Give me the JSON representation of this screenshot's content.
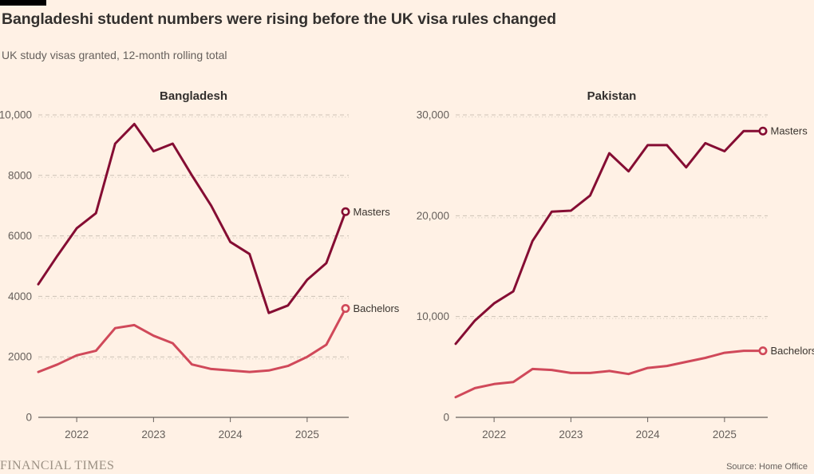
{
  "header": {
    "title": "Bangladeshi student numbers were rising before the UK visa rules changed",
    "subtitle": "UK study visas granted, 12-month rolling total"
  },
  "footer": {
    "brand": "FINANCIAL TIMES",
    "source": "Source: Home Office"
  },
  "colors": {
    "background": "#fff1e5",
    "black_bar": "#000000",
    "title_text": "#33302e",
    "muted_text": "#66605c",
    "label_text": "#3a342f",
    "grid": "#ccc1b5",
    "grid_dots": "#dbd1c5",
    "axis": "#66605c",
    "masters": "#850d33",
    "bachelors": "#d0495a"
  },
  "chart_data": [
    {
      "type": "line",
      "title": "Bangladesh",
      "xlabel": "",
      "ylabel": "",
      "x": [
        2021.5,
        2021.75,
        2022,
        2022.25,
        2022.5,
        2022.75,
        2023,
        2023.25,
        2023.5,
        2023.75,
        2024,
        2024.25,
        2024.5,
        2024.75,
        2025,
        2025.25,
        2025.5
      ],
      "xlim": [
        2021.5,
        2025.5
      ],
      "xticks": [
        2022,
        2023,
        2024,
        2025
      ],
      "xtick_labels": [
        "2022",
        "2023",
        "2024",
        "2025"
      ],
      "ylim": [
        0,
        10000
      ],
      "yticks": [
        0,
        2000,
        4000,
        6000,
        8000,
        10000
      ],
      "ytick_labels": [
        "0",
        "2000",
        "4000",
        "6000",
        "8000",
        "10,000"
      ],
      "grid": "horizontal dashed",
      "legend_position": "end-of-line labels",
      "series": [
        {
          "name": "Masters",
          "color_key": "masters",
          "values": [
            4400,
            5350,
            6250,
            6750,
            9050,
            9700,
            8800,
            9050,
            8000,
            7000,
            5800,
            5400,
            3450,
            3700,
            4550,
            5100,
            6800
          ]
        },
        {
          "name": "Bachelors",
          "color_key": "bachelors",
          "values": [
            1500,
            1750,
            2050,
            2200,
            2950,
            3050,
            2700,
            2450,
            1750,
            1600,
            1550,
            1500,
            1550,
            1700,
            2000,
            2400,
            3600
          ]
        }
      ]
    },
    {
      "type": "line",
      "title": "Pakistan",
      "xlabel": "",
      "ylabel": "",
      "x": [
        2021.5,
        2021.75,
        2022,
        2022.25,
        2022.5,
        2022.75,
        2023,
        2023.25,
        2023.5,
        2023.75,
        2024,
        2024.25,
        2024.5,
        2024.75,
        2025,
        2025.25,
        2025.5
      ],
      "xlim": [
        2021.5,
        2025.5
      ],
      "xticks": [
        2022,
        2023,
        2024,
        2025
      ],
      "xtick_labels": [
        "2022",
        "2023",
        "2024",
        "2025"
      ],
      "ylim": [
        0,
        30000
      ],
      "yticks": [
        0,
        10000,
        20000,
        30000
      ],
      "ytick_labels": [
        "0",
        "10,000",
        "20,000",
        "30,000"
      ],
      "grid": "horizontal dashed",
      "legend_position": "end-of-line labels",
      "series": [
        {
          "name": "Masters",
          "color_key": "masters",
          "values": [
            7300,
            9600,
            11300,
            12500,
            17500,
            20400,
            20500,
            22000,
            26200,
            24400,
            27000,
            27000,
            24800,
            27200,
            26400,
            28400,
            28400
          ]
        },
        {
          "name": "Bachelors",
          "color_key": "bachelors",
          "values": [
            2000,
            2900,
            3300,
            3500,
            4800,
            4700,
            4400,
            4400,
            4600,
            4300,
            4900,
            5100,
            5500,
            5900,
            6400,
            6600,
            6600
          ]
        }
      ]
    }
  ]
}
